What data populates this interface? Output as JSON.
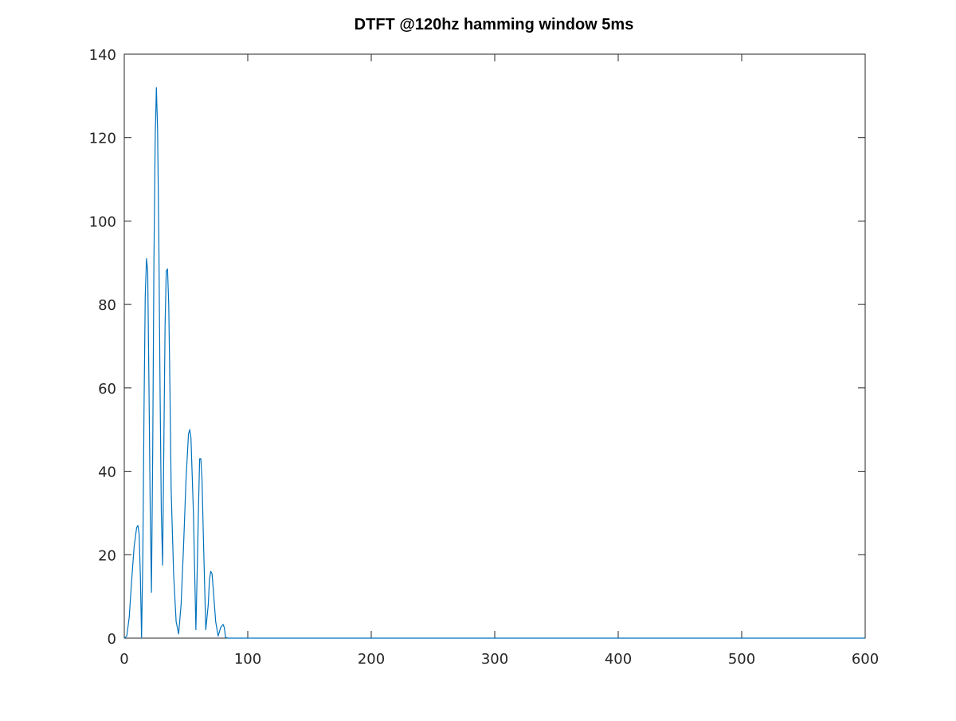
{
  "chart_data": {
    "type": "line",
    "title": "DTFT @120hz hamming window 5ms",
    "xlabel": "",
    "ylabel": "",
    "xlim": [
      0,
      600
    ],
    "ylim": [
      0,
      140
    ],
    "x_ticks": [
      0,
      100,
      200,
      300,
      400,
      500,
      600
    ],
    "y_ticks": [
      0,
      20,
      40,
      60,
      80,
      100,
      120,
      140
    ],
    "grid": false,
    "series": [
      {
        "color": "#0072bd",
        "x": [
          0,
          2,
          4,
          6,
          8,
          10,
          11,
          12,
          13,
          14,
          15,
          16,
          17,
          18,
          19,
          20,
          21,
          22,
          23,
          24,
          25,
          26,
          27,
          28,
          29,
          30,
          31,
          32,
          33,
          34,
          35,
          36,
          37,
          38,
          40,
          42,
          44,
          46,
          48,
          50,
          52,
          53,
          54,
          56,
          58,
          59,
          60,
          61,
          62,
          63,
          64,
          66,
          68,
          69,
          70,
          71,
          72,
          74,
          76,
          78,
          80,
          81,
          82,
          84,
          90,
          100,
          150,
          200,
          250,
          300,
          350,
          400,
          450,
          500,
          550,
          600
        ],
        "y": [
          0,
          0.5,
          5,
          14,
          22,
          26.5,
          27,
          25,
          15,
          0,
          20,
          55,
          82,
          91,
          88,
          60,
          30,
          11,
          45,
          90,
          120,
          132,
          122,
          95,
          60,
          30,
          17.5,
          45,
          75,
          88,
          88.5,
          80,
          60,
          35,
          15,
          4,
          1,
          8,
          22,
          38,
          49,
          50,
          48,
          30,
          2,
          15,
          30,
          43,
          43,
          38,
          25,
          2,
          8,
          14,
          16,
          15.5,
          12,
          4,
          0.5,
          2.5,
          3.3,
          2.5,
          0.2,
          0,
          0,
          0,
          0,
          0,
          0,
          0,
          0,
          0,
          0,
          0,
          0,
          0
        ]
      }
    ]
  }
}
